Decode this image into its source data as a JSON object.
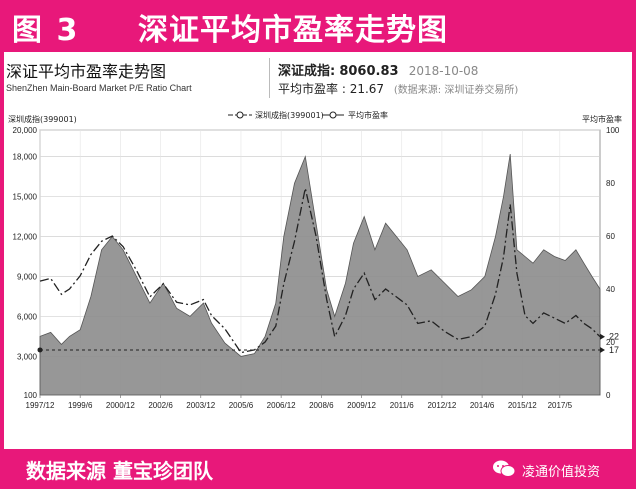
{
  "banner": {
    "figure_label": "图 3",
    "title": "深证平均市盈率走势图"
  },
  "header": {
    "title_cn": "深证平均市盈率走势图",
    "title_en": "ShenZhen Main-Board Market P/E Ratio Chart",
    "index_label": "深证成指:",
    "index_value": "8060.83",
    "date": "2018-10-08",
    "pe_label": "平均市盈率 : ",
    "pe_value": "21.67",
    "source": "(数据来源: 深圳证券交易所)"
  },
  "footer": {
    "credit": "数据来源    董宝珍团队",
    "brand": "凌通价值投资"
  },
  "colors": {
    "banner": "#e8187a",
    "area_fill": "#8c8c8c",
    "line": "#222222"
  },
  "chart_data": {
    "type": "area",
    "left_axis_label": "深圳成指(399001)",
    "right_axis_label": "平均市盈率",
    "left_ticks": [
      "20,000",
      "18,000",
      "15,000",
      "12,000",
      "9,000",
      "6,000",
      "3,000",
      "100"
    ],
    "left_tick_values": [
      20000,
      18000,
      15000,
      12000,
      9000,
      6000,
      3000,
      100
    ],
    "right_ticks": [
      "100",
      "80",
      "60",
      "40",
      "20",
      "0"
    ],
    "right_tick_values": [
      100,
      80,
      60,
      40,
      20,
      0
    ],
    "x_ticks": [
      "1997/12",
      "1999/6",
      "2000/12",
      "2002/6",
      "2003/12",
      "2005/6",
      "2006/12",
      "2008/6",
      "2009/12",
      "2011/6",
      "2012/12",
      "2014/6",
      "2015/12",
      "2017/5"
    ],
    "x_tick_values": [
      1997.9,
      1999.4,
      2000.9,
      2002.4,
      2003.9,
      2005.4,
      2006.9,
      2008.4,
      2009.9,
      2011.4,
      2012.9,
      2014.4,
      2015.9,
      2017.3
    ],
    "x_range": [
      1997.9,
      2018.8
    ],
    "left_range": [
      100,
      20000
    ],
    "right_range": [
      0,
      100
    ],
    "reference_line": {
      "label": "17",
      "value": 17
    },
    "current_pe_label": "22",
    "current_pe_value": 22,
    "grid": true,
    "legend_position": "top",
    "series": [
      {
        "name": "深圳成指(399001)",
        "axis": "left",
        "x": [
          1997.9,
          1998.3,
          1998.7,
          1999.0,
          1999.4,
          1999.8,
          2000.2,
          2000.6,
          2001.0,
          2001.5,
          2002.0,
          2002.5,
          2003.0,
          2003.5,
          2004.0,
          2004.3,
          2004.8,
          2005.4,
          2005.9,
          2006.3,
          2006.7,
          2007.0,
          2007.4,
          2007.8,
          2008.2,
          2008.6,
          2008.9,
          2009.3,
          2009.6,
          2010.0,
          2010.4,
          2010.8,
          2011.2,
          2011.6,
          2012.0,
          2012.5,
          2013.0,
          2013.5,
          2014.0,
          2014.5,
          2014.9,
          2015.2,
          2015.45,
          2015.7,
          2016.0,
          2016.3,
          2016.7,
          2017.1,
          2017.5,
          2017.9,
          2018.2,
          2018.5,
          2018.8
        ],
        "y": [
          4500,
          4800,
          3900,
          4500,
          5000,
          7500,
          11000,
          12000,
          11000,
          9000,
          7000,
          8500,
          6600,
          6000,
          7000,
          5500,
          4000,
          3000,
          3200,
          4500,
          7000,
          12000,
          16000,
          18000,
          13000,
          8000,
          6000,
          8500,
          11500,
          13500,
          11000,
          13000,
          12000,
          11000,
          9000,
          9500,
          8500,
          7500,
          8000,
          9000,
          12000,
          15000,
          18200,
          11000,
          10500,
          10000,
          11000,
          10500,
          10200,
          11000,
          10000,
          9000,
          8060
        ]
      },
      {
        "name": "平均市盈率",
        "axis": "right",
        "x": [
          1997.9,
          1998.3,
          1998.7,
          1999.0,
          1999.4,
          1999.8,
          2000.2,
          2000.6,
          2001.0,
          2001.5,
          2002.0,
          2002.5,
          2003.0,
          2003.5,
          2004.0,
          2004.3,
          2004.8,
          2005.4,
          2005.9,
          2006.3,
          2006.7,
          2007.0,
          2007.4,
          2007.8,
          2008.2,
          2008.6,
          2008.9,
          2009.3,
          2009.6,
          2010.0,
          2010.4,
          2010.8,
          2011.2,
          2011.6,
          2012.0,
          2012.5,
          2013.0,
          2013.5,
          2014.0,
          2014.5,
          2014.9,
          2015.2,
          2015.45,
          2015.7,
          2016.0,
          2016.3,
          2016.7,
          2017.1,
          2017.5,
          2017.9,
          2018.2,
          2018.5,
          2018.8
        ],
        "y": [
          43,
          44,
          38,
          40,
          45,
          53,
          58,
          60,
          56,
          47,
          37,
          42,
          35,
          34,
          36,
          30,
          25,
          16,
          17,
          20,
          26,
          42,
          58,
          78,
          60,
          36,
          22,
          30,
          40,
          46,
          36,
          40,
          37,
          34,
          27,
          28,
          24,
          21,
          22,
          26,
          38,
          52,
          72,
          46,
          30,
          27,
          31,
          29,
          27,
          30,
          27,
          25,
          22
        ]
      }
    ]
  }
}
